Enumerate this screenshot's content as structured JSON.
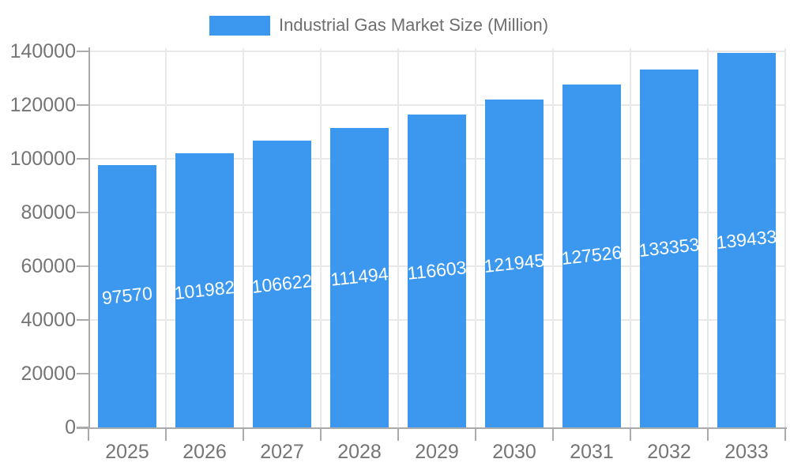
{
  "legend": {
    "label": "Industrial Gas Market Size (Million)"
  },
  "chart_data": {
    "type": "bar",
    "title": "Industrial Gas Market Size (Million)",
    "series_name": "Industrial Gas Market Size (Million)",
    "categories": [
      "2025",
      "2026",
      "2027",
      "2028",
      "2029",
      "2030",
      "2031",
      "2032",
      "2033"
    ],
    "values": [
      97570,
      101982,
      106622,
      111494,
      116603,
      121945,
      127526,
      133353,
      139433
    ],
    "xlabel": "",
    "ylabel": "",
    "ylim": [
      0,
      140000
    ],
    "y_ticks": [
      0,
      20000,
      40000,
      60000,
      80000,
      100000,
      120000,
      140000
    ],
    "grid": "horizontal and vertical gridlines on",
    "legend_position": "top",
    "bar_color": "#3B98EE",
    "bar_label_color": "#ffffff",
    "axis_text_color": "#757575",
    "grid_color": "#e8e8e8",
    "axis_line_color": "#ababab"
  }
}
